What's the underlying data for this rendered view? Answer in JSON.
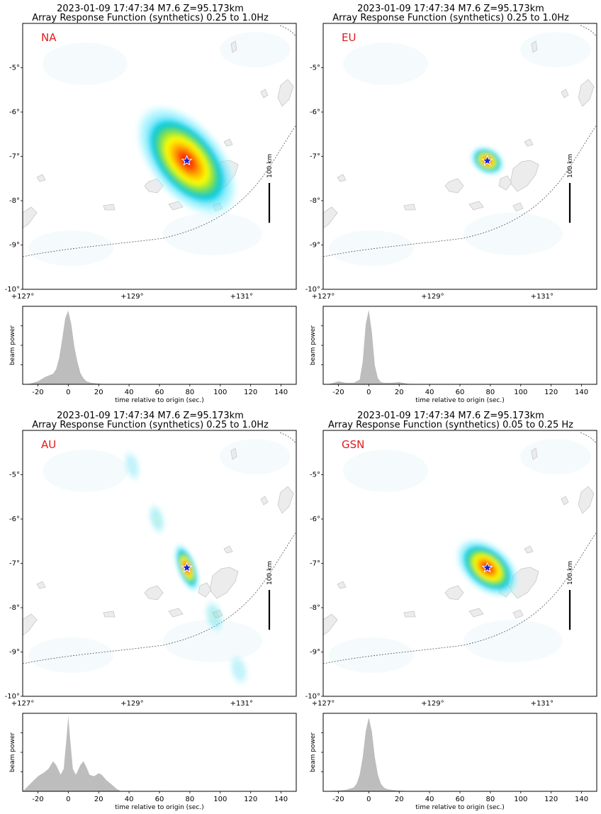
{
  "panels": [
    {
      "title_line1": "2023-01-09 17:47:34 M7.6 Z=95.173km",
      "title_line2": "Array Response Function (synthetics) 0.25 to 1.0Hz",
      "array_label": "NA",
      "scale_label": "100 km",
      "blobs": [
        {
          "lon": 130.0,
          "lat": -7.1,
          "rx_km": 108,
          "ry_km": 60,
          "rotate_deg": 50,
          "peak": 1.0
        }
      ]
    },
    {
      "title_line1": "2023-01-09 17:47:34 M7.6 Z=95.173km",
      "title_line2": "Array Response Function (synthetics) 0.25 to 1.0Hz",
      "array_label": "EU",
      "scale_label": "100 km",
      "blobs": [
        {
          "lon": 130.0,
          "lat": -7.1,
          "rx_km": 30,
          "ry_km": 22,
          "rotate_deg": 30,
          "peak": 1.0
        }
      ]
    },
    {
      "title_line1": "2023-01-09 17:47:34 M7.6 Z=95.173km",
      "title_line2": "Array Response Function (synthetics) 0.25 to 1.0Hz",
      "array_label": "AU",
      "scale_label": "100 km",
      "blobs": [
        {
          "lon": 130.0,
          "lat": -7.1,
          "rx_km": 42,
          "ry_km": 16,
          "rotate_deg": 70,
          "peak": 1.0
        },
        {
          "lon": 129.45,
          "lat": -6.0,
          "rx_km": 28,
          "ry_km": 14,
          "rotate_deg": 75,
          "peak": 0.42
        },
        {
          "lon": 130.5,
          "lat": -8.2,
          "rx_km": 30,
          "ry_km": 16,
          "rotate_deg": 75,
          "peak": 0.42
        },
        {
          "lon": 129.0,
          "lat": -4.8,
          "rx_km": 28,
          "ry_km": 14,
          "rotate_deg": 75,
          "peak": 0.25
        },
        {
          "lon": 130.95,
          "lat": -9.4,
          "rx_km": 28,
          "ry_km": 16,
          "rotate_deg": 75,
          "peak": 0.25
        }
      ]
    },
    {
      "title_line1": "2023-01-09 17:47:34 M7.6 Z=95.173km",
      "title_line2": "Array Response Function (synthetics) 0.05 to 0.25 Hz",
      "array_label": "GSN",
      "scale_label": "100 km",
      "blobs": [
        {
          "lon": 130.0,
          "lat": -7.1,
          "rx_km": 60,
          "ry_km": 38,
          "rotate_deg": 40,
          "peak": 1.0
        }
      ]
    }
  ],
  "map_axes": {
    "lon_range": [
      127.0,
      132.0
    ],
    "lat_range": [
      -10.0,
      -4.0
    ],
    "lon_ticks": [
      "+127°",
      "+129°",
      "+131°"
    ],
    "lon_tick_values": [
      127,
      129,
      131
    ],
    "lat_ticks": [
      "-5°",
      "-6°",
      "-7°",
      "-8°",
      "-9°",
      "-10°"
    ],
    "lat_tick_values": [
      -5,
      -6,
      -7,
      -8,
      -9,
      -10
    ],
    "epicenter": {
      "lon": 130.0,
      "lat": -7.1,
      "marker": "star",
      "color": "#1f1fd6"
    },
    "colormap": [
      "#ffffff",
      "#a6f6ff",
      "#35e0ff",
      "#00c8d8",
      "#7de04a",
      "#ffff00",
      "#ffb000",
      "#ff4a00",
      "#e00000"
    ]
  },
  "beam_axes": {
    "ylabel": "beam power",
    "xlabel": "time relative to origin (sec.)",
    "x_ticks": [
      "-20",
      "0",
      "20",
      "40",
      "60",
      "80",
      "100",
      "120",
      "140"
    ],
    "x_tick_values": [
      -20,
      0,
      20,
      40,
      60,
      80,
      100,
      120,
      140
    ],
    "xlim": [
      -30,
      150
    ],
    "ylim": [
      0,
      1
    ],
    "fill_color": "#bdbdbd"
  },
  "chart_data": [
    {
      "type": "area",
      "title": "",
      "xlabel": "time relative to origin (sec.)",
      "ylabel": "beam power",
      "x": [
        -30,
        -25,
        -20,
        -15,
        -10,
        -8,
        -6,
        -4,
        -2,
        0,
        2,
        4,
        6,
        8,
        10,
        12,
        15,
        20,
        25,
        30,
        40,
        60,
        150
      ],
      "y": [
        0.0,
        0.01,
        0.04,
        0.1,
        0.14,
        0.2,
        0.35,
        0.6,
        0.88,
        0.98,
        0.8,
        0.5,
        0.3,
        0.15,
        0.08,
        0.04,
        0.02,
        0.01,
        0.0,
        0.0,
        0.0,
        0.0,
        0.0
      ]
    },
    {
      "type": "area",
      "title": "",
      "xlabel": "time relative to origin (sec.)",
      "ylabel": "beam power",
      "x": [
        -30,
        -25,
        -20,
        -15,
        -10,
        -6,
        -4,
        -2,
        0,
        2,
        4,
        6,
        8,
        10,
        15,
        20,
        25,
        30,
        150
      ],
      "y": [
        0.0,
        0.01,
        0.04,
        0.02,
        0.02,
        0.06,
        0.3,
        0.8,
        0.99,
        0.7,
        0.25,
        0.08,
        0.03,
        0.02,
        0.02,
        0.03,
        0.01,
        0.0,
        0.0
      ]
    },
    {
      "type": "area",
      "title": "",
      "xlabel": "time relative to origin (sec.)",
      "ylabel": "beam power",
      "x": [
        -30,
        -25,
        -20,
        -16,
        -13,
        -10,
        -8,
        -5,
        -3,
        -1,
        0,
        1,
        3,
        5,
        8,
        10,
        12,
        14,
        17,
        20,
        22,
        25,
        28,
        32,
        35,
        150
      ],
      "y": [
        0.0,
        0.1,
        0.2,
        0.25,
        0.3,
        0.4,
        0.35,
        0.22,
        0.3,
        0.75,
        1.0,
        0.75,
        0.3,
        0.22,
        0.35,
        0.4,
        0.32,
        0.22,
        0.2,
        0.24,
        0.22,
        0.15,
        0.1,
        0.03,
        0.0,
        0.0
      ]
    },
    {
      "type": "area",
      "title": "",
      "xlabel": "time relative to origin (sec.)",
      "ylabel": "beam power",
      "x": [
        -30,
        -20,
        -15,
        -10,
        -8,
        -6,
        -4,
        -2,
        0,
        2,
        4,
        6,
        8,
        10,
        12,
        15,
        20,
        30,
        150
      ],
      "y": [
        0.0,
        0.01,
        0.02,
        0.05,
        0.1,
        0.22,
        0.45,
        0.8,
        0.98,
        0.8,
        0.45,
        0.22,
        0.1,
        0.05,
        0.03,
        0.02,
        0.01,
        0.0,
        0.0
      ]
    }
  ]
}
